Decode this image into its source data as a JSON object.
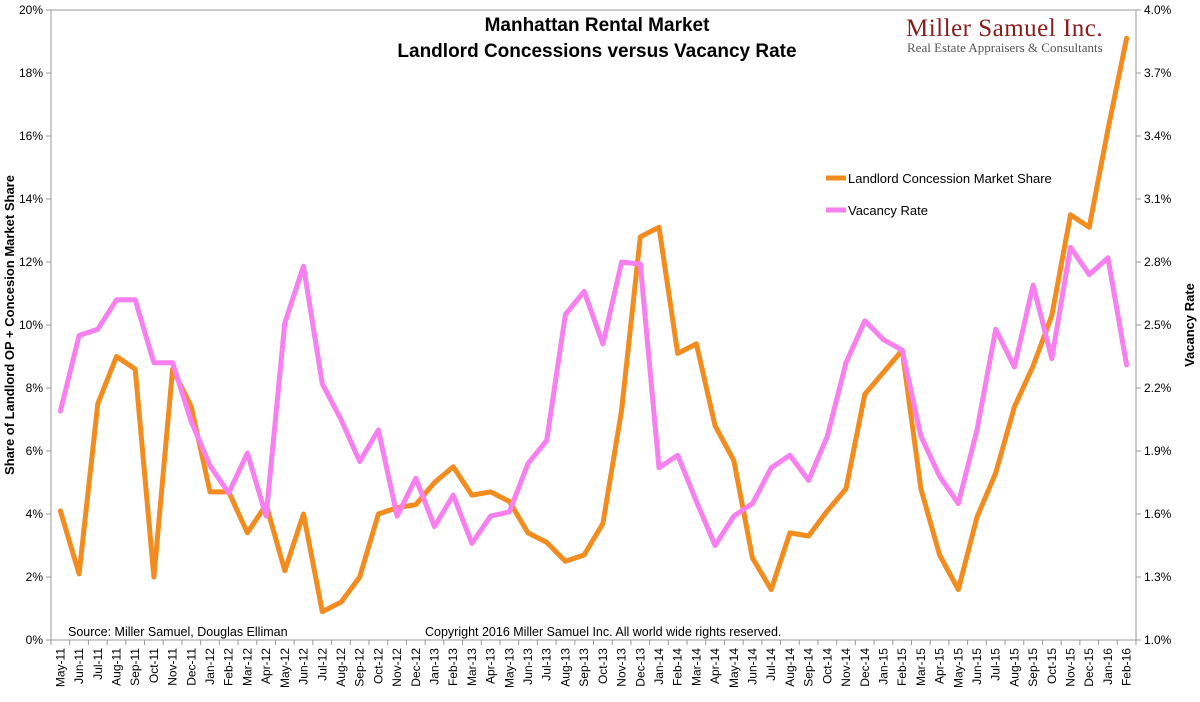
{
  "chart_data": {
    "type": "line",
    "title": [
      "Manhattan Rental Market",
      "Landlord Concessions versus Vacancy Rate"
    ],
    "ylabel_left": "Share of Landlord OP + Concesion Market Share",
    "ylabel_right": "Vacancy Rate",
    "ylim_left": [
      0,
      20
    ],
    "ylim_right": [
      1.0,
      4.0
    ],
    "yticks_left": [
      "0%",
      "2%",
      "4%",
      "6%",
      "8%",
      "10%",
      "12%",
      "14%",
      "16%",
      "18%",
      "20%"
    ],
    "yticks_right": [
      "1.0%",
      "1.3%",
      "1.6%",
      "1.9%",
      "2.2%",
      "2.5%",
      "2.8%",
      "3.1%",
      "3.4%",
      "3.7%",
      "4.0%"
    ],
    "categories": [
      "May-11",
      "Jun-11",
      "Jul-11",
      "Aug-11",
      "Sep-11",
      "Oct-11",
      "Nov-11",
      "Dec-11",
      "Jan-12",
      "Feb-12",
      "Mar-12",
      "Apr-12",
      "May-12",
      "Jun-12",
      "Jul-12",
      "Aug-12",
      "Sep-12",
      "Oct-12",
      "Nov-12",
      "Dec-12",
      "Jan-13",
      "Feb-13",
      "Mar-13",
      "Apr-13",
      "May-13",
      "Jun-13",
      "Jul-13",
      "Aug-13",
      "Sep-13",
      "Oct-13",
      "Nov-13",
      "Dec-13",
      "Jan-14",
      "Feb-14",
      "Mar-14",
      "Apr-14",
      "May-14",
      "Jun-14",
      "Jul-14",
      "Aug-14",
      "Sep-14",
      "Oct-14",
      "Nov-14",
      "Dec-14",
      "Jan-15",
      "Feb-15",
      "Mar-15",
      "Apr-15",
      "May-15",
      "Jun-15",
      "Jul-15",
      "Aug-15",
      "Sep-15",
      "Oct-15",
      "Nov-15",
      "Dec-15",
      "Jan-16",
      "Feb-16"
    ],
    "series": [
      {
        "name": "Landlord Concession Market Share",
        "axis": "left",
        "color": "#f28c1e",
        "values": [
          4.1,
          2.1,
          7.5,
          9.0,
          8.6,
          2.0,
          8.6,
          7.4,
          4.7,
          4.7,
          3.4,
          4.3,
          2.2,
          4.0,
          0.9,
          1.2,
          2.0,
          4.0,
          4.2,
          4.3,
          5.0,
          5.5,
          4.6,
          4.7,
          4.4,
          3.4,
          3.1,
          2.5,
          2.7,
          3.7,
          7.3,
          12.8,
          13.1,
          9.1,
          9.4,
          6.8,
          5.7,
          2.6,
          1.6,
          3.4,
          3.3,
          4.1,
          4.8,
          7.8,
          8.5,
          9.2,
          4.8,
          2.7,
          1.6,
          3.9,
          5.3,
          7.4,
          8.7,
          10.3,
          13.5,
          13.1,
          16.2,
          19.1
        ]
      },
      {
        "name": "Vacancy Rate",
        "axis": "right",
        "color": "#f77ff0",
        "values": [
          2.09,
          2.45,
          2.48,
          2.62,
          2.62,
          2.32,
          2.32,
          2.04,
          1.83,
          1.7,
          1.89,
          1.59,
          2.51,
          2.78,
          2.22,
          2.05,
          1.85,
          2.0,
          1.59,
          1.77,
          1.54,
          1.69,
          1.46,
          1.59,
          1.61,
          1.84,
          1.95,
          2.55,
          2.66,
          2.41,
          2.8,
          2.79,
          1.82,
          1.88,
          1.66,
          1.45,
          1.59,
          1.65,
          1.82,
          1.88,
          1.76,
          1.97,
          2.32,
          2.52,
          2.43,
          2.38,
          1.97,
          1.78,
          1.65,
          2.0,
          2.48,
          2.3,
          2.69,
          2.34,
          2.87,
          2.74,
          2.82,
          2.31
        ]
      }
    ],
    "legend": [
      "Landlord Concession Market Share",
      "Vacancy Rate"
    ],
    "gridlines": false
  },
  "notes": {
    "source": "Source: Miller Samuel, Douglas Elliman",
    "copyright": "Copyright 2016 Miller Samuel Inc.  All world wide rights reserved."
  },
  "logo": {
    "name": "Miller Samuel Inc.",
    "tagline": "Real Estate Appraisers & Consultants"
  }
}
